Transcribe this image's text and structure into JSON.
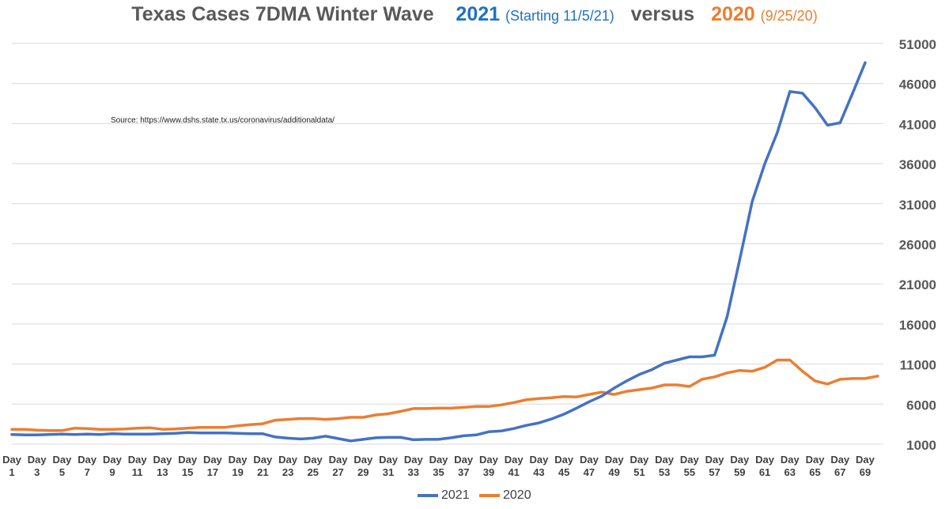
{
  "title": {
    "main": "Texas Cases 7DMA Winter Wave",
    "y2021": "2021",
    "y2021_sub": "(Starting 11/5/21)",
    "versus": "versus",
    "y2020": "2020",
    "y2020_sub": "(9/25/20)"
  },
  "source": "Source:  https://www.dshs.state.tx.us/coronavirus/additionaldata/",
  "colors": {
    "s2021": "#4472c4",
    "s2020": "#ed7d31",
    "grid": "#d9d9d9",
    "axis_text": "#595959"
  },
  "chart_data": {
    "type": "line",
    "title": "Texas Cases 7DMA Winter Wave 2021 (Starting 11/5/21) versus 2020 (9/25/20)",
    "xlabel": "",
    "ylabel": "",
    "ylim": [
      1000,
      51000
    ],
    "yticks": [
      1000,
      6000,
      11000,
      16000,
      21000,
      26000,
      31000,
      36000,
      41000,
      46000,
      51000
    ],
    "y_axis_side": "right",
    "grid": true,
    "legend": "bottom",
    "x_tick_labels": [
      "Day 1",
      "Day 3",
      "Day 5",
      "Day 7",
      "Day 9",
      "Day 11",
      "Day 13",
      "Day 15",
      "Day 17",
      "Day 19",
      "Day 21",
      "Day 23",
      "Day 25",
      "Day 27",
      "Day 29",
      "Day 31",
      "Day 33",
      "Day 35",
      "Day 37",
      "Day 39",
      "Day 41",
      "Day 43",
      "Day 45",
      "Day 47",
      "Day 49",
      "Day 51",
      "Day 53",
      "Day 55",
      "Day 57",
      "Day 59",
      "Day 61",
      "Day 63",
      "Day 65",
      "Day 67",
      "Day 69"
    ],
    "x": [
      1,
      2,
      3,
      4,
      5,
      6,
      7,
      8,
      9,
      10,
      11,
      12,
      13,
      14,
      15,
      16,
      17,
      18,
      19,
      20,
      21,
      22,
      23,
      24,
      25,
      26,
      27,
      28,
      29,
      30,
      31,
      32,
      33,
      34,
      35,
      36,
      37,
      38,
      39,
      40,
      41,
      42,
      43,
      44,
      45,
      46,
      47,
      48,
      49,
      50,
      51,
      52,
      53,
      54,
      55,
      56,
      57,
      58,
      59,
      60,
      61,
      62,
      63,
      64,
      65,
      66,
      67,
      68,
      69,
      70
    ],
    "series": [
      {
        "name": "2021",
        "values": [
          2200,
          2150,
          2150,
          2200,
          2250,
          2200,
          2250,
          2200,
          2300,
          2250,
          2250,
          2250,
          2300,
          2350,
          2450,
          2400,
          2400,
          2400,
          2350,
          2300,
          2300,
          1900,
          1750,
          1650,
          1750,
          2000,
          1700,
          1400,
          1600,
          1800,
          1850,
          1850,
          1550,
          1600,
          1600,
          1800,
          2050,
          2150,
          2550,
          2650,
          2950,
          3350,
          3650,
          4150,
          4750,
          5500,
          6300,
          7000,
          8000,
          8900,
          9700,
          10300,
          11100,
          11500,
          11900,
          11900,
          12100,
          16900,
          24000,
          31300,
          36000,
          39900,
          45000,
          44800,
          43000,
          40800,
          41100,
          44800,
          48600,
          null
        ]
      },
      {
        "name": "2020",
        "values": [
          2850,
          2850,
          2750,
          2700,
          2700,
          3000,
          2950,
          2850,
          2850,
          2900,
          3000,
          3050,
          2850,
          2900,
          3000,
          3100,
          3100,
          3100,
          3300,
          3450,
          3550,
          4000,
          4100,
          4200,
          4200,
          4100,
          4200,
          4350,
          4350,
          4650,
          4800,
          5100,
          5450,
          5450,
          5500,
          5500,
          5600,
          5700,
          5700,
          5900,
          6200,
          6550,
          6700,
          6800,
          6950,
          6900,
          7200,
          7500,
          7200,
          7600,
          7800,
          8000,
          8400,
          8400,
          8200,
          9100,
          9400,
          9900,
          10200,
          10100,
          10600,
          11500,
          11500,
          10100,
          8900,
          8500,
          9100,
          9200,
          9200,
          9500
        ]
      }
    ]
  }
}
